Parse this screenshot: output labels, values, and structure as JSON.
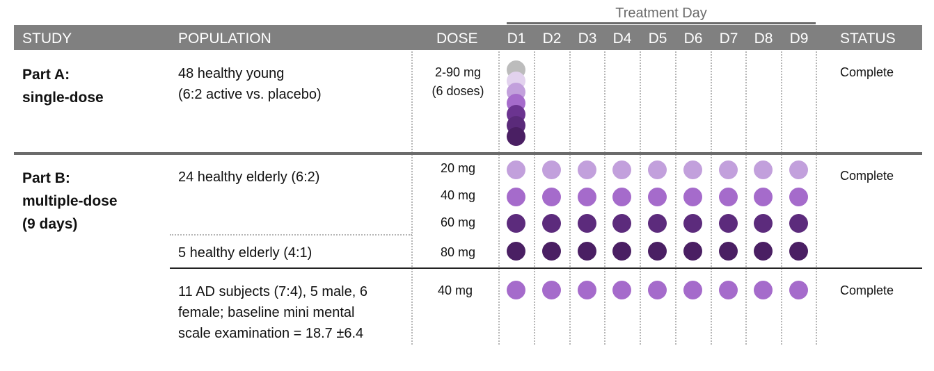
{
  "header": {
    "group_label": "Treatment Day",
    "study": "STUDY",
    "population": "POPULATION",
    "dose": "DOSE",
    "days": [
      "D1",
      "D2",
      "D3",
      "D4",
      "D5",
      "D6",
      "D7",
      "D8",
      "D9"
    ],
    "status": "STATUS"
  },
  "colors": {
    "placebo": "#bcbcbc",
    "dose_20mg": "#c2a0dc",
    "dose_40mg": "#a56bcb",
    "dose_60mg": "#5c2b7c",
    "dose_80mg": "#4a1f63",
    "part_a_doses": [
      "#bcbcbc",
      "#e2d2ee",
      "#c2a0dc",
      "#a56bcb",
      "#6b3490",
      "#5a2a7a",
      "#4a1f63"
    ]
  },
  "part_a": {
    "title_1": "Part A:",
    "title_2": "single-dose",
    "population_1": "48 healthy young",
    "population_2": "(6:2 active vs. placebo)",
    "dose_1": "2-90 mg",
    "dose_2": "(6 doses)",
    "status": "Complete"
  },
  "part_b": {
    "title_1": "Part B:",
    "title_2": "multiple-dose",
    "title_3": "(9 days)",
    "cohort_1_population": "24 healthy elderly (6:2)",
    "dose_20": "20 mg",
    "dose_40": "40 mg",
    "dose_60": "60 mg",
    "cohort_2_population": "5 healthy elderly (4:1)",
    "dose_80": "80 mg",
    "status": "Complete"
  },
  "part_ad": {
    "population_1": "11 AD subjects (7:4), 5 male, 6",
    "population_2": "female; baseline mini mental",
    "population_3": "scale examination = 18.7 ±6.4",
    "dose": "40 mg",
    "status": "Complete"
  }
}
